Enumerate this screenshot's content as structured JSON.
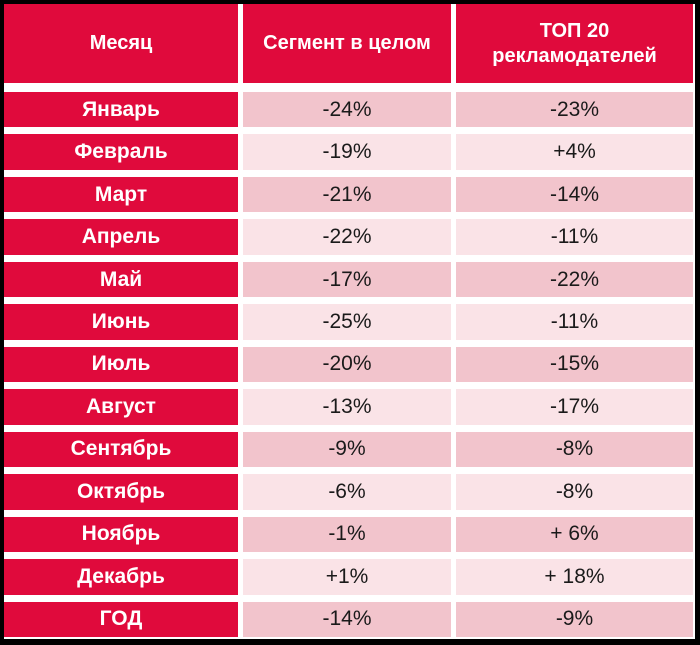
{
  "table": {
    "header": {
      "month": "Месяц",
      "segment": "Сегмент в целом",
      "top20": "ТОП 20 рекламодателей"
    },
    "rows": [
      {
        "month": "Январь",
        "segment": "-24%",
        "top20": "-23%"
      },
      {
        "month": "Февраль",
        "segment": "-19%",
        "top20": "+4%"
      },
      {
        "month": "Март",
        "segment": "-21%",
        "top20": "-14%"
      },
      {
        "month": "Апрель",
        "segment": "-22%",
        "top20": "-11%"
      },
      {
        "month": "Май",
        "segment": "-17%",
        "top20": "-22%"
      },
      {
        "month": "Июнь",
        "segment": "-25%",
        "top20": "-11%"
      },
      {
        "month": "Июль",
        "segment": "-20%",
        "top20": "-15%"
      },
      {
        "month": "Август",
        "segment": "-13%",
        "top20": "-17%"
      },
      {
        "month": "Сентябрь",
        "segment": "-9%",
        "top20": "-8%"
      },
      {
        "month": "Октябрь",
        "segment": "-6%",
        "top20": "-8%"
      },
      {
        "month": "Ноябрь",
        "segment": "-1%",
        "top20": "+ 6%"
      },
      {
        "month": "Декабрь",
        "segment": "+1%",
        "top20": "+ 18%"
      },
      {
        "month": "ГОД",
        "segment": "-14%",
        "top20": "-9%"
      }
    ]
  },
  "colors": {
    "crimson": "#E00A3C",
    "pink_dark": "#F2C4CC",
    "pink_light": "#FAE3E7",
    "text_dark": "#1A1A1A",
    "gap_white": "#FFFFFF",
    "border_black": "#000000"
  },
  "chart_data": {
    "type": "table",
    "title": "",
    "columns": [
      "Месяц",
      "Сегмент в целом",
      "ТОП 20 рекламодателей"
    ],
    "rows": [
      [
        "Январь",
        "-24%",
        "-23%"
      ],
      [
        "Февраль",
        "-19%",
        "+4%"
      ],
      [
        "Март",
        "-21%",
        "-14%"
      ],
      [
        "Апрель",
        "-22%",
        "-11%"
      ],
      [
        "Май",
        "-17%",
        "-22%"
      ],
      [
        "Июнь",
        "-25%",
        "-11%"
      ],
      [
        "Июль",
        "-20%",
        "-15%"
      ],
      [
        "Август",
        "-13%",
        "-17%"
      ],
      [
        "Сентябрь",
        "-9%",
        "-8%"
      ],
      [
        "Октябрь",
        "-6%",
        "-8%"
      ],
      [
        "Ноябрь",
        "-1%",
        "+ 6%"
      ],
      [
        "Декабрь",
        "+1%",
        "+ 18%"
      ],
      [
        "ГОД",
        "-14%",
        "-9%"
      ]
    ],
    "values_numeric": {
      "segment": [
        -24,
        -19,
        -21,
        -22,
        -17,
        -25,
        -20,
        -13,
        -9,
        -6,
        -1,
        1,
        -14
      ],
      "top20": [
        -23,
        4,
        -14,
        -11,
        -22,
        -11,
        -15,
        -17,
        -8,
        -8,
        6,
        18,
        -9
      ]
    },
    "legend_position": "none",
    "grid": false
  }
}
